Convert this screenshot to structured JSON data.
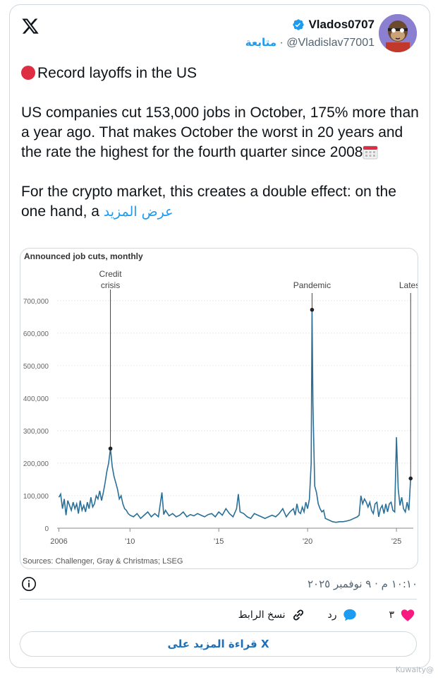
{
  "author": {
    "display_name": "Vlados0707",
    "handle": "@Vladislav77001",
    "follow_label": "متابعة",
    "separator": "·"
  },
  "tweet": {
    "line1": "Record layoffs in the US",
    "paragraph2": "US companies cut 153,000 jobs in October, 175% more than a year ago. That makes October the worst in 20 years and the rate the highest for the fourth quarter since 2008",
    "paragraph3": "For the crypto market, this creates a double effect: on the one hand, a",
    "show_more": "عرض المزيد"
  },
  "meta": {
    "timestamp": "١٠:١٠ م · ٩ نوفمبر ٢٠٢٥"
  },
  "actions": {
    "like_count": "٣",
    "reply_label": "رد",
    "copy_link_label": "نسخ الرابط"
  },
  "read_more_label": "قراءة المزيد على X",
  "watermark": "Kuwaity@",
  "colors": {
    "accent": "#1d9bf0",
    "line": "#2a6f97",
    "heart": "#f91880"
  },
  "chart_data": {
    "type": "line",
    "title": "Announced job cuts, monthly",
    "source": "Sources: Challenger, Gray & Christmas; LSEG",
    "x_ticks": [
      "2006",
      "'10",
      "'15",
      "'20",
      "'25"
    ],
    "x_tick_years": [
      2006,
      2010,
      2015,
      2020,
      2025
    ],
    "y_ticks": [
      "0",
      "100,000",
      "200,000",
      "300,000",
      "400,000",
      "500,000",
      "600,000",
      "700,000"
    ],
    "ylim": [
      0,
      730000
    ],
    "xlim": [
      2005.9,
      2025.95
    ],
    "annotations": [
      {
        "label": "Credit",
        "label2": "crisis",
        "x": 2008.9,
        "y": 245000
      },
      {
        "label": "Pandemic",
        "label2": "",
        "x": 2020.25,
        "y": 672000
      },
      {
        "label": "Latest",
        "label2": "",
        "x": 2025.8,
        "y": 153000
      }
    ],
    "series": [
      {
        "x": [
          2006.0,
          2006.1,
          2006.2,
          2006.3,
          2006.4,
          2006.5,
          2006.6,
          2006.7,
          2006.8,
          2006.9,
          2007.0,
          2007.1,
          2007.2,
          2007.3,
          2007.4,
          2007.5,
          2007.6,
          2007.7,
          2007.8,
          2007.9,
          2008.0,
          2008.1,
          2008.2,
          2008.3,
          2008.4,
          2008.5,
          2008.6,
          2008.7,
          2008.8,
          2008.9,
          2009.0,
          2009.1,
          2009.2,
          2009.3,
          2009.4,
          2009.5,
          2009.6,
          2009.7,
          2009.8,
          2009.9,
          2010.0,
          2010.2,
          2010.4,
          2010.6,
          2010.8,
          2011.0,
          2011.2,
          2011.4,
          2011.6,
          2011.8,
          2011.9,
          2012.0,
          2012.2,
          2012.4,
          2012.6,
          2012.8,
          2013.0,
          2013.2,
          2013.4,
          2013.6,
          2013.8,
          2014.0,
          2014.2,
          2014.4,
          2014.6,
          2014.8,
          2015.0,
          2015.2,
          2015.4,
          2015.6,
          2015.8,
          2016.0,
          2016.1,
          2016.2,
          2016.4,
          2016.6,
          2016.8,
          2017.0,
          2017.2,
          2017.4,
          2017.6,
          2017.8,
          2018.0,
          2018.2,
          2018.4,
          2018.6,
          2018.8,
          2019.0,
          2019.1,
          2019.2,
          2019.3,
          2019.4,
          2019.5,
          2019.6,
          2019.7,
          2019.8,
          2019.9,
          2020.0,
          2020.1,
          2020.2,
          2020.25,
          2020.3,
          2020.4,
          2020.5,
          2020.6,
          2020.7,
          2020.8,
          2020.9,
          2021.0,
          2021.2,
          2021.4,
          2021.6,
          2021.8,
          2022.0,
          2022.2,
          2022.4,
          2022.6,
          2022.8,
          2022.9,
          2023.0,
          2023.1,
          2023.2,
          2023.3,
          2023.4,
          2023.5,
          2023.6,
          2023.7,
          2023.8,
          2023.9,
          2024.0,
          2024.1,
          2024.2,
          2024.3,
          2024.4,
          2024.5,
          2024.6,
          2024.7,
          2024.8,
          2024.9,
          2025.0,
          2025.1,
          2025.2,
          2025.3,
          2025.4,
          2025.5,
          2025.6,
          2025.7,
          2025.8
        ],
        "y": [
          95000,
          105000,
          60000,
          90000,
          40000,
          85000,
          70000,
          55000,
          80000,
          60000,
          75000,
          45000,
          85000,
          55000,
          70000,
          50000,
          80000,
          60000,
          95000,
          65000,
          75000,
          100000,
          90000,
          115000,
          85000,
          110000,
          140000,
          175000,
          200000,
          245000,
          190000,
          160000,
          140000,
          120000,
          90000,
          100000,
          75000,
          60000,
          55000,
          45000,
          40000,
          35000,
          45000,
          30000,
          40000,
          50000,
          35000,
          45000,
          35000,
          110000,
          42000,
          55000,
          38000,
          45000,
          35000,
          40000,
          50000,
          35000,
          42000,
          38000,
          45000,
          40000,
          35000,
          42000,
          45000,
          35000,
          50000,
          40000,
          60000,
          45000,
          35000,
          60000,
          105000,
          50000,
          45000,
          35000,
          30000,
          45000,
          40000,
          35000,
          30000,
          35000,
          40000,
          35000,
          45000,
          60000,
          35000,
          50000,
          55000,
          60000,
          40000,
          75000,
          50000,
          45000,
          65000,
          50000,
          80000,
          60000,
          90000,
          200000,
          672000,
          380000,
          130000,
          110000,
          75000,
          60000,
          50000,
          55000,
          30000,
          25000,
          20000,
          18000,
          20000,
          20000,
          22000,
          25000,
          30000,
          35000,
          40000,
          100000,
          75000,
          90000,
          80000,
          65000,
          80000,
          55000,
          45000,
          75000,
          80000,
          35000,
          60000,
          70000,
          45000,
          75000,
          50000,
          75000,
          80000,
          55000,
          50000,
          280000,
          120000,
          70000,
          95000,
          60000,
          50000,
          80000,
          55000,
          153000
        ]
      }
    ]
  }
}
